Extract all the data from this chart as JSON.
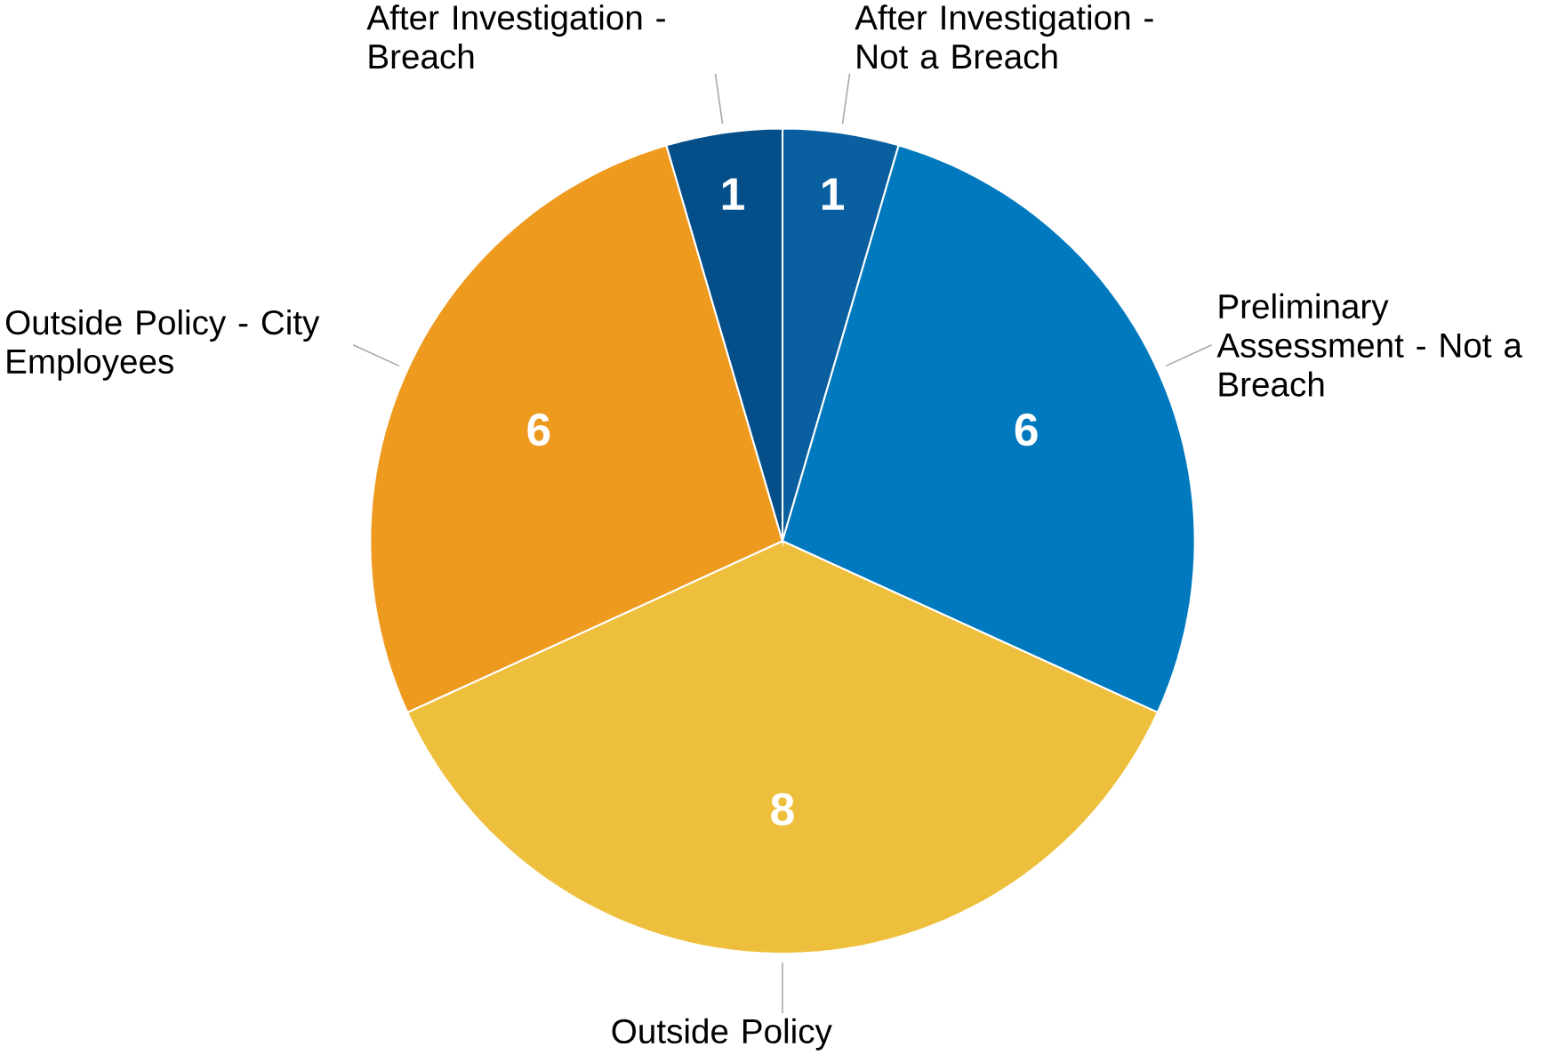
{
  "chart_data": {
    "type": "pie",
    "categories": [
      "After Investigation - Not a Breach",
      "Preliminary Assessment - Not a Breach",
      "Outside Policy",
      "Outside Policy - City Employees",
      "After Investigation - Breach"
    ],
    "values": [
      1,
      6,
      8,
      6,
      1
    ],
    "colors": [
      "#0a5fa0",
      "#0079bf",
      "#eebf3d",
      "#ee9a1f",
      "#044f8a"
    ],
    "data_labels": true
  }
}
